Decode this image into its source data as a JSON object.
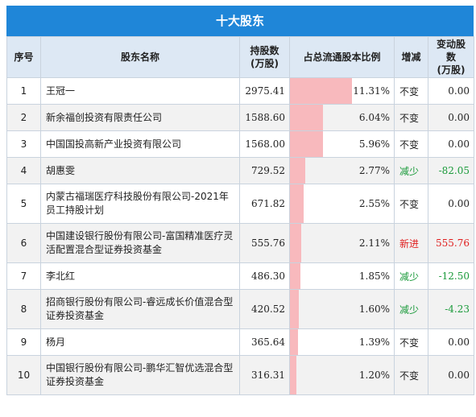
{
  "title": "十大股东",
  "headers": {
    "rank": "序号",
    "name": "股东名称",
    "shares": [
      "持股数",
      "(万股)"
    ],
    "ratio": "占总流通股本比例",
    "change_type": "增减",
    "change_shares": [
      "变动股数",
      "(万股)"
    ]
  },
  "max_ratio": 11.31,
  "colors": {
    "header_bg": "#1f86d8",
    "bar": "#f8b9bd",
    "increase": "#e02020",
    "decrease": "#1a9a3a"
  },
  "rows": [
    {
      "rank": "1",
      "name": "王冠一",
      "shares": "2975.41",
      "ratio": "11.31%",
      "ratio_value": 11.31,
      "change_type": "不变",
      "change_kind": "same",
      "change_shares": "0.00"
    },
    {
      "rank": "2",
      "name": "新余福创投资有限责任公司",
      "shares": "1588.60",
      "ratio": "6.04%",
      "ratio_value": 6.04,
      "change_type": "不变",
      "change_kind": "same",
      "change_shares": "0.00"
    },
    {
      "rank": "3",
      "name": "中国国投高新产业投资有限公司",
      "shares": "1568.00",
      "ratio": "5.96%",
      "ratio_value": 5.96,
      "change_type": "不变",
      "change_kind": "same",
      "change_shares": "0.00"
    },
    {
      "rank": "4",
      "name": "胡惠雯",
      "shares": "729.52",
      "ratio": "2.77%",
      "ratio_value": 2.77,
      "change_type": "减少",
      "change_kind": "down",
      "change_shares": "-82.05"
    },
    {
      "rank": "5",
      "name": "内蒙古福瑞医疗科技股份有限公司-2021年员工持股计划",
      "shares": "671.82",
      "ratio": "2.55%",
      "ratio_value": 2.55,
      "change_type": "不变",
      "change_kind": "same",
      "change_shares": "0.00"
    },
    {
      "rank": "6",
      "name": "中国建设银行股份有限公司-富国精准医疗灵活配置混合型证券投资基金",
      "shares": "555.76",
      "ratio": "2.11%",
      "ratio_value": 2.11,
      "change_type": "新进",
      "change_kind": "up",
      "change_shares": "555.76"
    },
    {
      "rank": "7",
      "name": "李北红",
      "shares": "486.30",
      "ratio": "1.85%",
      "ratio_value": 1.85,
      "change_type": "减少",
      "change_kind": "down",
      "change_shares": "-12.50"
    },
    {
      "rank": "8",
      "name": "招商银行股份有限公司-睿远成长价值混合型证券投资基金",
      "shares": "420.52",
      "ratio": "1.60%",
      "ratio_value": 1.6,
      "change_type": "减少",
      "change_kind": "down",
      "change_shares": "-4.23"
    },
    {
      "rank": "9",
      "name": "杨月",
      "shares": "365.64",
      "ratio": "1.39%",
      "ratio_value": 1.39,
      "change_type": "不变",
      "change_kind": "same",
      "change_shares": "0.00"
    },
    {
      "rank": "10",
      "name": "中国银行股份有限公司-鹏华汇智优选混合型证券投资基金",
      "shares": "316.31",
      "ratio": "1.20%",
      "ratio_value": 1.2,
      "change_type": "不变",
      "change_kind": "same",
      "change_shares": "0.00"
    }
  ]
}
